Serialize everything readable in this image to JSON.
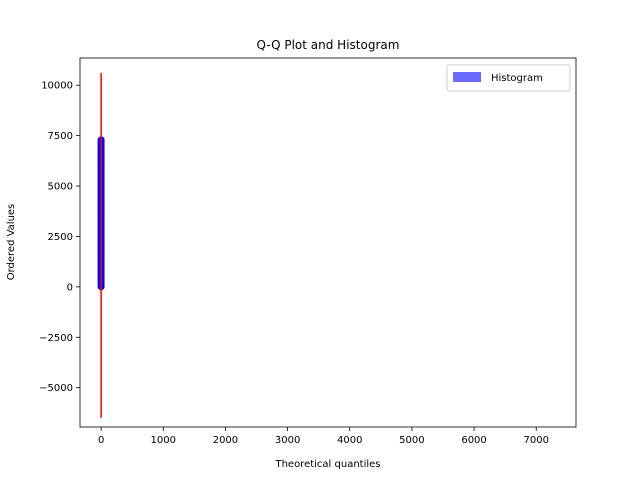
{
  "chart_data": {
    "type": "scatter",
    "title": "Q-Q Plot and Histogram",
    "xlabel": "Theoretical quantiles",
    "ylabel": "Ordered Values",
    "xlim": [
      -340,
      7640
    ],
    "ylim": [
      -6950,
      11350
    ],
    "xticks": [
      0,
      1000,
      2000,
      3000,
      4000,
      5000,
      6000,
      7000
    ],
    "yticks": [
      -5000,
      -2500,
      0,
      2500,
      5000,
      7500,
      10000
    ],
    "grid": false,
    "legend": {
      "placement": "top-right",
      "entries": [
        {
          "label": "Histogram",
          "color": "#6b6bff"
        }
      ]
    },
    "series": [
      {
        "kind": "points",
        "color": "#0000ff",
        "x": 0,
        "y_range": [
          0,
          7300
        ],
        "count": 200
      },
      {
        "kind": "fit-line",
        "color": "#ff0000",
        "x": [
          0,
          0
        ],
        "y": [
          -6500,
          10600
        ]
      },
      {
        "name": "Histogram",
        "kind": "histogram",
        "color": "#6b6bff",
        "values": []
      }
    ]
  }
}
